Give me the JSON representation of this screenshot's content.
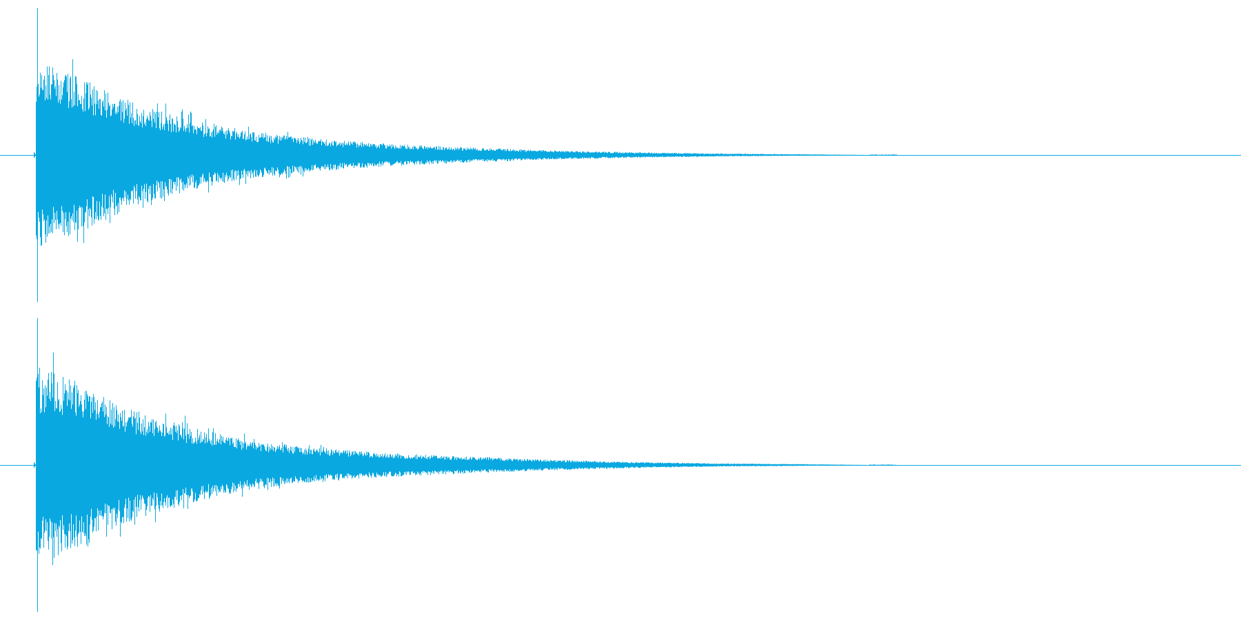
{
  "waveform": {
    "color": "#0aa8e0",
    "background": "#ffffff",
    "channel_count": 2,
    "channels": [
      {
        "name": "channel-1",
        "onset_fraction": 0.029,
        "fade_end_fraction": 0.7,
        "transient_peak": 0.97,
        "envelope": [
          [
            0.0,
            0.62
          ],
          [
            0.02,
            0.58
          ],
          [
            0.05,
            0.52
          ],
          [
            0.08,
            0.44
          ],
          [
            0.12,
            0.34
          ],
          [
            0.18,
            0.24
          ],
          [
            0.25,
            0.16
          ],
          [
            0.33,
            0.11
          ],
          [
            0.42,
            0.075
          ],
          [
            0.52,
            0.05
          ],
          [
            0.62,
            0.03
          ],
          [
            0.72,
            0.018
          ],
          [
            0.82,
            0.01
          ],
          [
            0.92,
            0.005
          ],
          [
            1.0,
            0.0
          ]
        ]
      },
      {
        "name": "channel-2",
        "onset_fraction": 0.029,
        "fade_end_fraction": 0.7,
        "transient_peak": 0.97,
        "envelope": [
          [
            0.0,
            0.6
          ],
          [
            0.02,
            0.62
          ],
          [
            0.05,
            0.56
          ],
          [
            0.08,
            0.47
          ],
          [
            0.12,
            0.36
          ],
          [
            0.18,
            0.26
          ],
          [
            0.25,
            0.17
          ],
          [
            0.33,
            0.115
          ],
          [
            0.42,
            0.08
          ],
          [
            0.52,
            0.055
          ],
          [
            0.62,
            0.035
          ],
          [
            0.72,
            0.02
          ],
          [
            0.82,
            0.011
          ],
          [
            0.92,
            0.006
          ],
          [
            1.0,
            0.0
          ]
        ]
      }
    ]
  }
}
